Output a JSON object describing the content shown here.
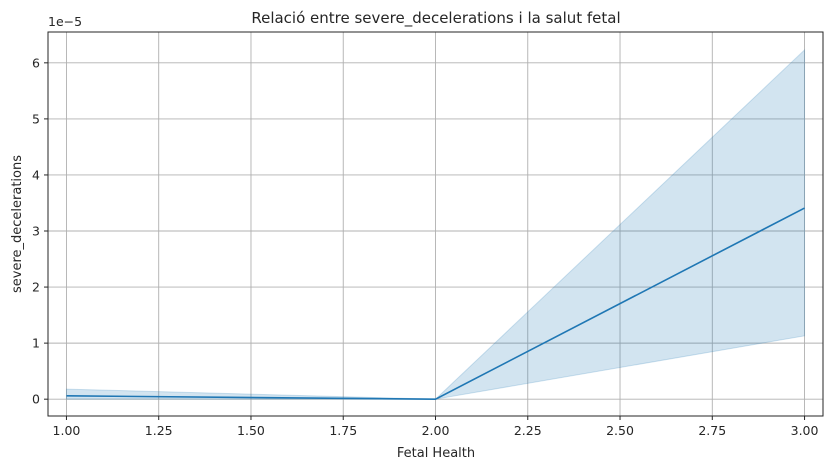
{
  "chart_data": {
    "type": "line",
    "title": "Relació entre severe_decelerations i la salut fetal",
    "xlabel": "Fetal Health",
    "ylabel": "severe_decelerations",
    "y_scale_label": "1e−5",
    "xlim": [
      0.95,
      3.05
    ],
    "ylim": [
      -0.3,
      6.55
    ],
    "x_ticks": [
      1.0,
      1.25,
      1.5,
      1.75,
      2.0,
      2.25,
      2.5,
      2.75,
      3.0
    ],
    "x_tick_labels": [
      "1.00",
      "1.25",
      "1.50",
      "1.75",
      "2.00",
      "2.25",
      "2.50",
      "2.75",
      "3.00"
    ],
    "y_ticks": [
      0,
      1,
      2,
      3,
      4,
      5,
      6
    ],
    "y_tick_labels": [
      "0",
      "1",
      "2",
      "3",
      "4",
      "5",
      "6"
    ],
    "grid": true,
    "colors": {
      "line": "#1f77b4",
      "band": "#1f77b4"
    },
    "series": [
      {
        "x": [
          1.0,
          2.0,
          3.0
        ],
        "y": [
          0.06,
          0.0,
          3.41
        ],
        "ci_lower": [
          0.0,
          0.0,
          1.13
        ],
        "ci_upper": [
          0.18,
          0.0,
          6.23
        ]
      }
    ]
  }
}
